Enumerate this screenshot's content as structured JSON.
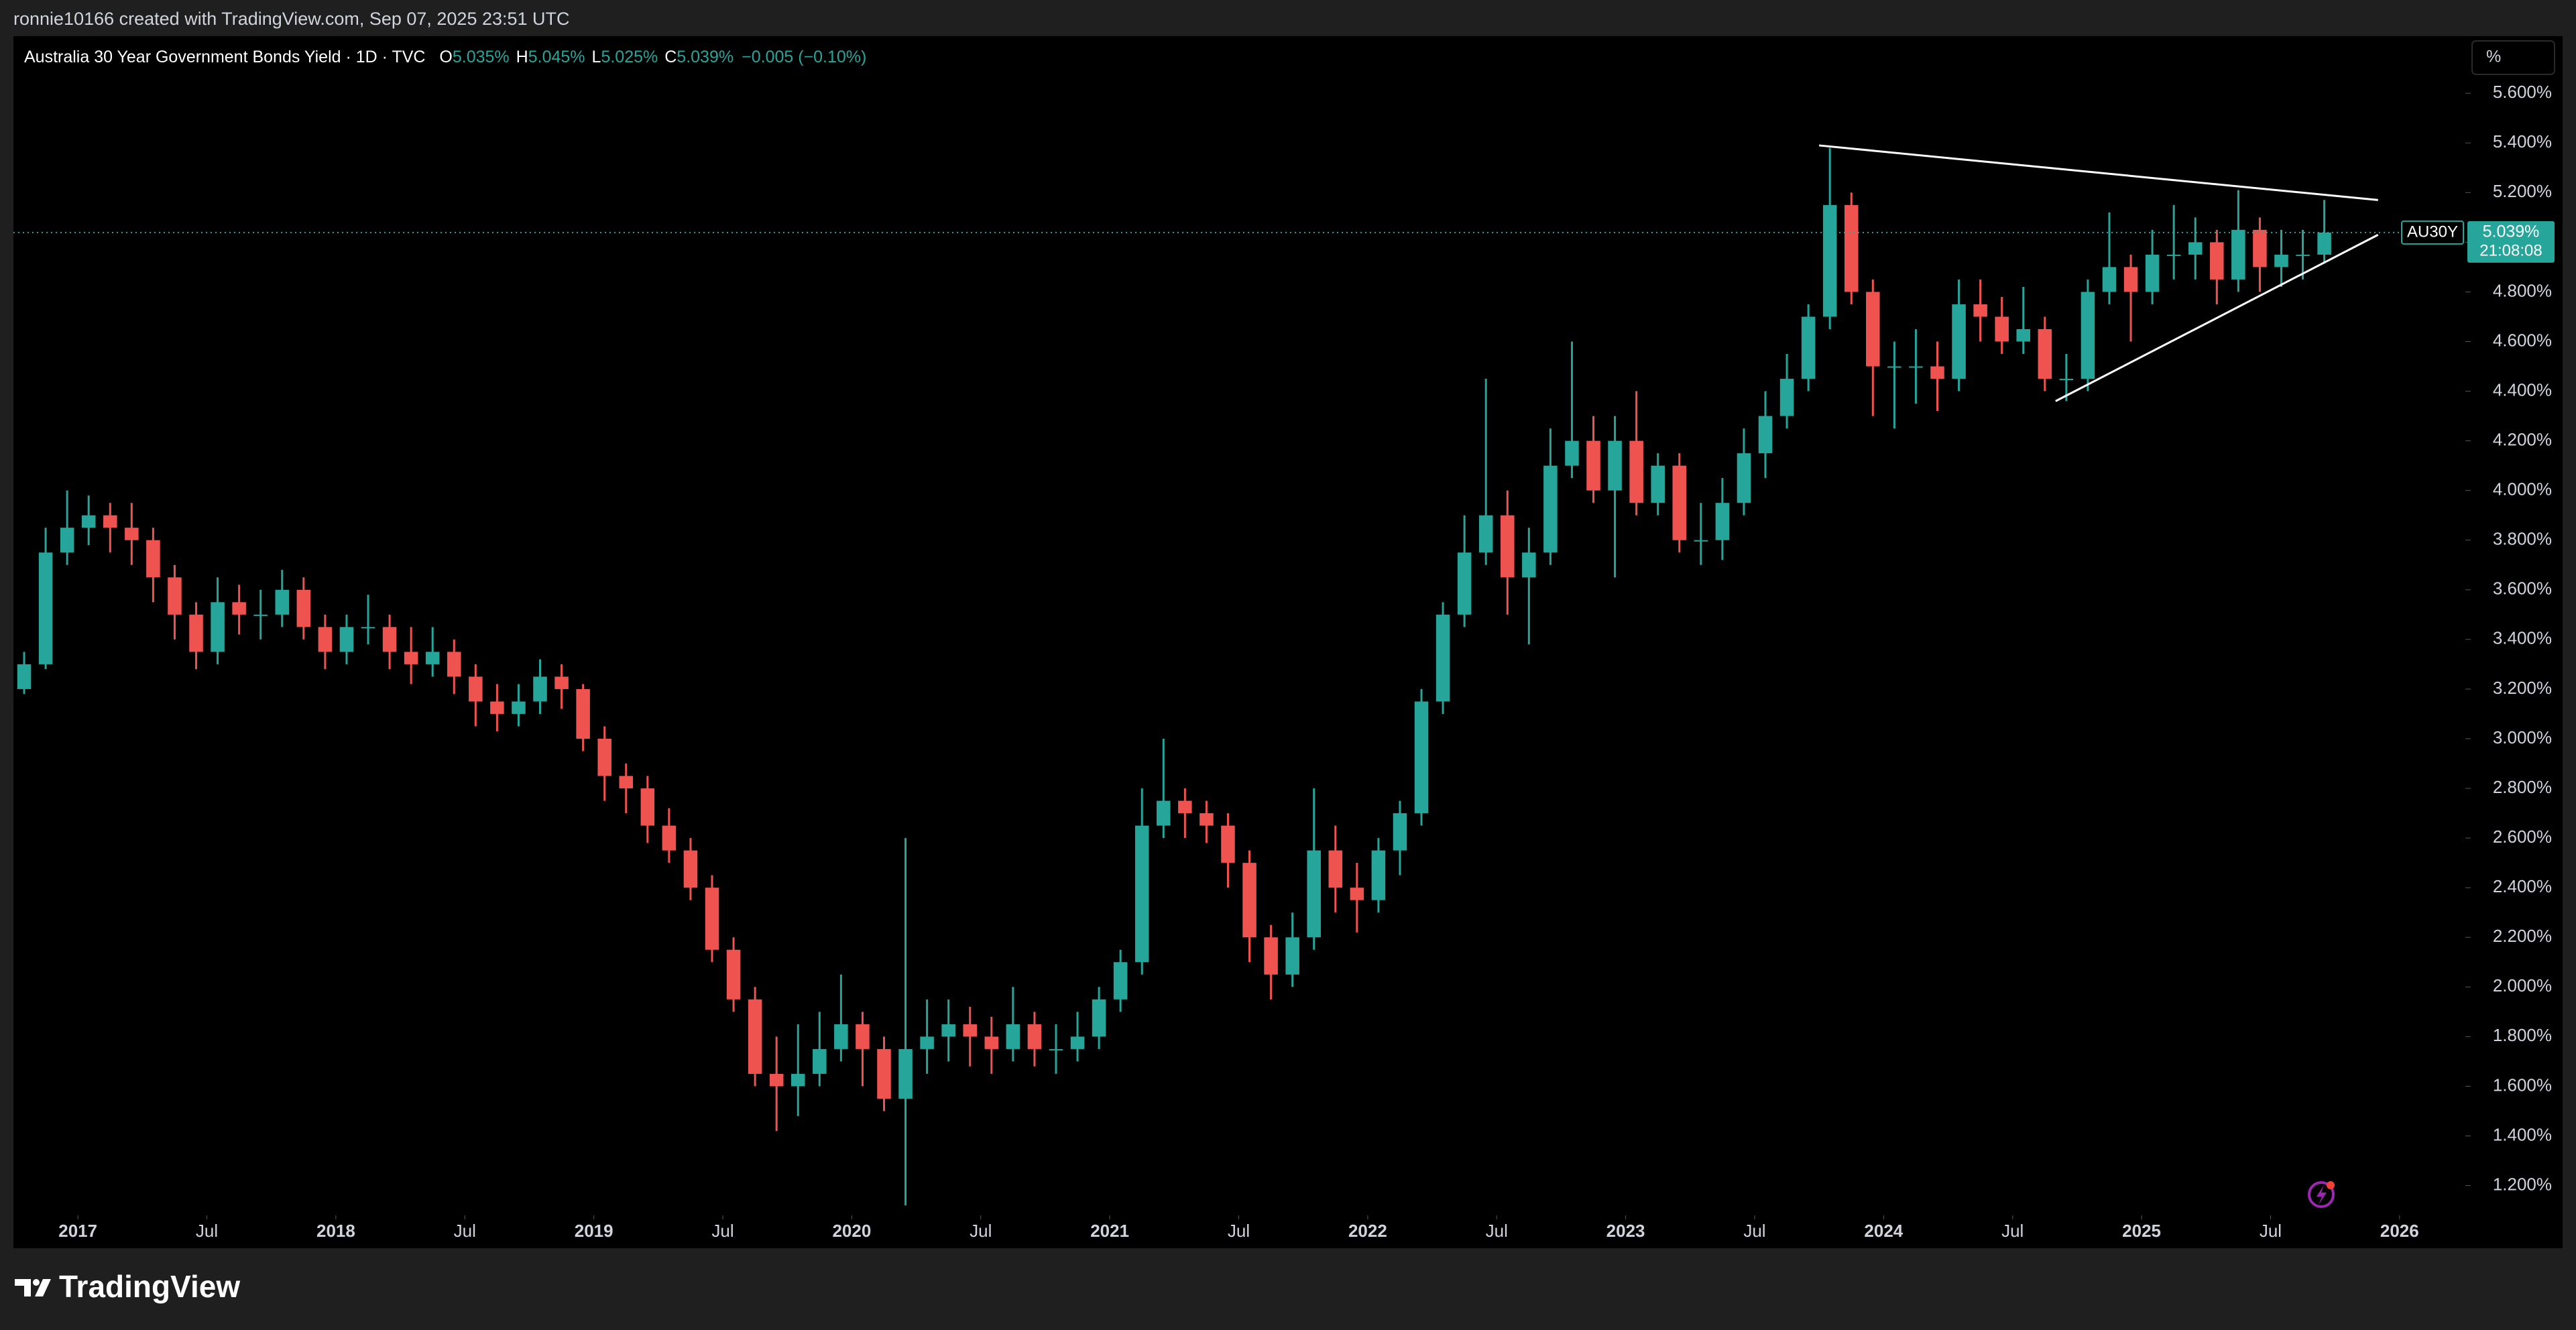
{
  "header": {
    "credit": "ronnie10166 created with TradingView.com, Sep 07, 2025 23:51 UTC"
  },
  "footer": {
    "brand": "TradingView"
  },
  "chart_data": {
    "type": "candlestick",
    "legend": {
      "symbol": "Australia 30 Year Government Bonds Yield · 1D · TVC",
      "ohlc": [
        {
          "label": "O",
          "value": "5.035%"
        },
        {
          "label": "H",
          "value": "5.045%"
        },
        {
          "label": "L",
          "value": "5.025%"
        },
        {
          "label": "C",
          "value": "5.039%"
        }
      ],
      "change": "−0.005 (−0.10%)"
    },
    "unit_button": "%",
    "last_label": {
      "symbol": "AU30Y",
      "price": "5.039%",
      "countdown": "21:08:08"
    },
    "up_color": "#26a69a",
    "down_color": "#ef5350",
    "grid": false,
    "xlim": [
      "2016-10",
      "2026-04"
    ],
    "ylim": [
      1.08,
      5.83
    ],
    "xticks": [
      {
        "value": "2017-01",
        "label": "2017"
      },
      {
        "value": "2017-07",
        "label": "Jul"
      },
      {
        "value": "2018-01",
        "label": "2018"
      },
      {
        "value": "2018-07",
        "label": "Jul"
      },
      {
        "value": "2019-01",
        "label": "2019"
      },
      {
        "value": "2019-07",
        "label": "Jul"
      },
      {
        "value": "2020-01",
        "label": "2020"
      },
      {
        "value": "2020-07",
        "label": "Jul"
      },
      {
        "value": "2021-01",
        "label": "2021"
      },
      {
        "value": "2021-07",
        "label": "Jul"
      },
      {
        "value": "2022-01",
        "label": "2022"
      },
      {
        "value": "2022-07",
        "label": "Jul"
      },
      {
        "value": "2023-01",
        "label": "2023"
      },
      {
        "value": "2023-07",
        "label": "Jul"
      },
      {
        "value": "2024-01",
        "label": "2024"
      },
      {
        "value": "2024-07",
        "label": "Jul"
      },
      {
        "value": "2025-01",
        "label": "2025"
      },
      {
        "value": "2025-07",
        "label": "Jul"
      },
      {
        "value": "2026-01",
        "label": "2026"
      }
    ],
    "yticks": [
      {
        "value": 1.2,
        "label": "1.200%"
      },
      {
        "value": 1.4,
        "label": "1.400%"
      },
      {
        "value": 1.6,
        "label": "1.600%"
      },
      {
        "value": 1.8,
        "label": "1.800%"
      },
      {
        "value": 2.0,
        "label": "2.000%"
      },
      {
        "value": 2.2,
        "label": "2.200%"
      },
      {
        "value": 2.4,
        "label": "2.400%"
      },
      {
        "value": 2.6,
        "label": "2.600%"
      },
      {
        "value": 2.8,
        "label": "2.800%"
      },
      {
        "value": 3.0,
        "label": "3.000%"
      },
      {
        "value": 3.2,
        "label": "3.200%"
      },
      {
        "value": 3.4,
        "label": "3.400%"
      },
      {
        "value": 3.6,
        "label": "3.600%"
      },
      {
        "value": 3.8,
        "label": "3.800%"
      },
      {
        "value": 4.0,
        "label": "4.000%"
      },
      {
        "value": 4.2,
        "label": "4.200%"
      },
      {
        "value": 4.4,
        "label": "4.400%"
      },
      {
        "value": 4.6,
        "label": "4.600%"
      },
      {
        "value": 4.8,
        "label": "4.800%"
      },
      {
        "value": 5.0,
        "label": "5.000%"
      },
      {
        "value": 5.2,
        "label": "5.200%"
      },
      {
        "value": 5.4,
        "label": "5.400%"
      },
      {
        "value": 5.6,
        "label": "5.600%"
      }
    ],
    "x": [
      "2016-10",
      "2016-11",
      "2016-12",
      "2017-01",
      "2017-02",
      "2017-03",
      "2017-04",
      "2017-05",
      "2017-06",
      "2017-07",
      "2017-08",
      "2017-09",
      "2017-10",
      "2017-11",
      "2017-12",
      "2018-01",
      "2018-02",
      "2018-03",
      "2018-04",
      "2018-05",
      "2018-06",
      "2018-07",
      "2018-08",
      "2018-09",
      "2018-10",
      "2018-11",
      "2018-12",
      "2019-01",
      "2019-02",
      "2019-03",
      "2019-04",
      "2019-05",
      "2019-06",
      "2019-07",
      "2019-08",
      "2019-09",
      "2019-10",
      "2019-11",
      "2019-12",
      "2020-01",
      "2020-02",
      "2020-03",
      "2020-04",
      "2020-05",
      "2020-06",
      "2020-07",
      "2020-08",
      "2020-09",
      "2020-10",
      "2020-11",
      "2020-12",
      "2021-01",
      "2021-02",
      "2021-03",
      "2021-04",
      "2021-05",
      "2021-06",
      "2021-07",
      "2021-08",
      "2021-09",
      "2021-10",
      "2021-11",
      "2021-12",
      "2022-01",
      "2022-02",
      "2022-03",
      "2022-04",
      "2022-05",
      "2022-06",
      "2022-07",
      "2022-08",
      "2022-09",
      "2022-10",
      "2022-11",
      "2022-12",
      "2023-01",
      "2023-02",
      "2023-03",
      "2023-04",
      "2023-05",
      "2023-06",
      "2023-07",
      "2023-08",
      "2023-09",
      "2023-10",
      "2023-11",
      "2023-12",
      "2024-01",
      "2024-02",
      "2024-03",
      "2024-04",
      "2024-05",
      "2024-06",
      "2024-07",
      "2024-08",
      "2024-09",
      "2024-10",
      "2024-11",
      "2024-12",
      "2025-01",
      "2025-02",
      "2025-03",
      "2025-04",
      "2025-05",
      "2025-06",
      "2025-07",
      "2025-08",
      "2025-09"
    ],
    "open": [
      3.2,
      3.3,
      3.75,
      3.85,
      3.9,
      3.85,
      3.8,
      3.65,
      3.5,
      3.35,
      3.55,
      3.5,
      3.5,
      3.6,
      3.45,
      3.35,
      3.45,
      3.45,
      3.35,
      3.3,
      3.35,
      3.25,
      3.15,
      3.1,
      3.15,
      3.25,
      3.2,
      3.0,
      2.85,
      2.8,
      2.65,
      2.55,
      2.4,
      2.15,
      1.95,
      1.65,
      1.6,
      1.65,
      1.75,
      1.85,
      1.75,
      1.55,
      1.75,
      1.8,
      1.85,
      1.8,
      1.75,
      1.85,
      1.75,
      1.75,
      1.8,
      1.95,
      2.1,
      2.65,
      2.75,
      2.7,
      2.65,
      2.5,
      2.2,
      2.05,
      2.2,
      2.55,
      2.4,
      2.35,
      2.55,
      2.7,
      3.15,
      3.5,
      3.75,
      3.9,
      3.65,
      3.75,
      4.1,
      4.2,
      4.0,
      4.2,
      3.95,
      4.1,
      3.8,
      3.8,
      3.95,
      4.15,
      4.3,
      4.45,
      4.7,
      5.15,
      4.8,
      4.5,
      4.5,
      4.5,
      4.45,
      4.75,
      4.7,
      4.6,
      4.65,
      4.45,
      4.45,
      4.8,
      4.9,
      4.8,
      4.95,
      4.95,
      5.0,
      4.85,
      5.05,
      4.9,
      4.95,
      4.95
    ],
    "high": [
      3.35,
      3.85,
      4.0,
      3.98,
      3.95,
      3.95,
      3.85,
      3.7,
      3.55,
      3.65,
      3.62,
      3.6,
      3.68,
      3.65,
      3.5,
      3.5,
      3.58,
      3.5,
      3.45,
      3.45,
      3.4,
      3.3,
      3.22,
      3.22,
      3.32,
      3.3,
      3.22,
      3.05,
      2.9,
      2.85,
      2.72,
      2.6,
      2.45,
      2.2,
      2.0,
      1.8,
      1.85,
      1.9,
      2.05,
      1.9,
      1.8,
      2.6,
      1.95,
      1.95,
      1.92,
      1.88,
      2.0,
      1.9,
      1.85,
      1.9,
      2.0,
      2.15,
      2.8,
      3.0,
      2.8,
      2.75,
      2.7,
      2.55,
      2.25,
      2.3,
      2.8,
      2.65,
      2.5,
      2.6,
      2.75,
      3.2,
      3.55,
      3.9,
      4.45,
      4.0,
      3.85,
      4.25,
      4.6,
      4.3,
      4.3,
      4.4,
      4.15,
      4.15,
      3.95,
      4.05,
      4.25,
      4.4,
      4.55,
      4.75,
      5.38,
      5.2,
      4.85,
      4.6,
      4.65,
      4.6,
      4.85,
      4.85,
      4.78,
      4.82,
      4.7,
      4.55,
      4.85,
      5.12,
      4.95,
      5.05,
      5.15,
      5.1,
      5.05,
      5.21,
      5.1,
      5.05,
      5.05,
      5.17
    ],
    "low": [
      3.18,
      3.28,
      3.7,
      3.78,
      3.75,
      3.7,
      3.55,
      3.4,
      3.28,
      3.3,
      3.42,
      3.4,
      3.45,
      3.4,
      3.28,
      3.3,
      3.38,
      3.28,
      3.22,
      3.25,
      3.18,
      3.05,
      3.03,
      3.05,
      3.1,
      3.12,
      2.95,
      2.75,
      2.7,
      2.58,
      2.5,
      2.35,
      2.1,
      1.9,
      1.6,
      1.42,
      1.48,
      1.6,
      1.7,
      1.6,
      1.5,
      1.12,
      1.65,
      1.7,
      1.68,
      1.65,
      1.7,
      1.68,
      1.65,
      1.7,
      1.75,
      1.9,
      2.05,
      2.6,
      2.6,
      2.58,
      2.4,
      2.1,
      1.95,
      2.0,
      2.15,
      2.3,
      2.22,
      2.3,
      2.45,
      2.65,
      3.1,
      3.45,
      3.7,
      3.5,
      3.38,
      3.7,
      4.05,
      3.95,
      3.65,
      3.9,
      3.9,
      3.75,
      3.7,
      3.72,
      3.9,
      4.05,
      4.25,
      4.4,
      4.65,
      4.75,
      4.3,
      4.25,
      4.35,
      4.32,
      4.4,
      4.6,
      4.55,
      4.55,
      4.4,
      4.36,
      4.4,
      4.75,
      4.6,
      4.75,
      4.85,
      4.85,
      4.75,
      4.8,
      4.8,
      4.82,
      4.85,
      4.92
    ],
    "close": [
      3.3,
      3.75,
      3.85,
      3.9,
      3.85,
      3.8,
      3.65,
      3.5,
      3.35,
      3.55,
      3.5,
      3.5,
      3.6,
      3.45,
      3.35,
      3.45,
      3.45,
      3.35,
      3.3,
      3.35,
      3.25,
      3.15,
      3.1,
      3.15,
      3.25,
      3.2,
      3.0,
      2.85,
      2.8,
      2.65,
      2.55,
      2.4,
      2.15,
      1.95,
      1.65,
      1.6,
      1.65,
      1.75,
      1.85,
      1.75,
      1.55,
      1.75,
      1.8,
      1.85,
      1.8,
      1.75,
      1.85,
      1.75,
      1.75,
      1.8,
      1.95,
      2.1,
      2.65,
      2.75,
      2.7,
      2.65,
      2.5,
      2.2,
      2.05,
      2.2,
      2.55,
      2.4,
      2.35,
      2.55,
      2.7,
      3.15,
      3.5,
      3.75,
      3.9,
      3.65,
      3.75,
      4.1,
      4.2,
      4.0,
      4.2,
      3.95,
      4.1,
      3.8,
      3.8,
      3.95,
      4.15,
      4.3,
      4.45,
      4.7,
      5.15,
      4.8,
      4.5,
      4.5,
      4.5,
      4.45,
      4.75,
      4.7,
      4.6,
      4.65,
      4.45,
      4.45,
      4.8,
      4.9,
      4.8,
      4.95,
      4.95,
      5.0,
      4.85,
      5.05,
      4.9,
      4.95,
      4.95,
      5.039
    ],
    "trendlines": [
      {
        "color": "#ffffff",
        "x": [
          "2023-10",
          "2025-12"
        ],
        "y": [
          5.39,
          5.17
        ]
      },
      {
        "color": "#ffffff",
        "x": [
          "2024-09",
          "2025-12"
        ],
        "y": [
          4.36,
          5.03
        ]
      }
    ]
  }
}
